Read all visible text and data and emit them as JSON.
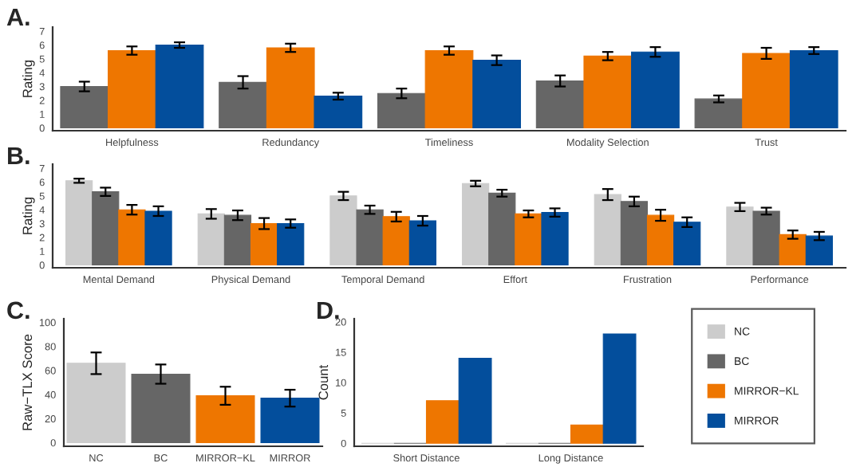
{
  "chart_data": [
    {
      "type": "bar",
      "title": "A.",
      "ylabel": "Rating",
      "categories": [
        "Helpfulness",
        "Redundancy",
        "Timeliness",
        "Modality Selection",
        "Trust"
      ],
      "ylim": [
        -0.2,
        7.3
      ],
      "yticks": [
        0,
        1,
        2,
        3,
        4,
        5,
        6,
        7
      ],
      "series": [
        {
          "color": "#666666",
          "values": [
            3.0,
            3.3,
            2.5,
            3.4,
            2.1
          ],
          "errors": [
            0.35,
            0.45,
            0.35,
            0.4,
            0.25
          ]
        },
        {
          "color": "#ee7600",
          "values": [
            5.6,
            5.8,
            5.6,
            5.2,
            5.4
          ],
          "errors": [
            0.3,
            0.3,
            0.3,
            0.3,
            0.4
          ]
        },
        {
          "color": "#034e9c",
          "values": [
            6.0,
            2.3,
            4.9,
            5.5,
            5.6
          ],
          "errors": [
            0.2,
            0.25,
            0.35,
            0.35,
            0.25
          ]
        }
      ]
    },
    {
      "type": "bar",
      "title": "B.",
      "ylabel": "Rating",
      "categories": [
        "Mental Demand",
        "Physical Demand",
        "Temporal Demand",
        "Effort",
        "Frustration",
        "Performance"
      ],
      "ylim": [
        -0.2,
        7.3
      ],
      "yticks": [
        0,
        1,
        2,
        3,
        4,
        5,
        6,
        7
      ],
      "series": [
        {
          "color": "#cccccc",
          "values": [
            6.1,
            3.7,
            5.0,
            5.9,
            5.1,
            4.2
          ],
          "errors": [
            0.15,
            0.35,
            0.3,
            0.2,
            0.4,
            0.3
          ]
        },
        {
          "color": "#666666",
          "values": [
            5.3,
            3.6,
            4.0,
            5.2,
            4.6,
            3.9
          ],
          "errors": [
            0.3,
            0.35,
            0.3,
            0.25,
            0.35,
            0.25
          ]
        },
        {
          "color": "#ee7600",
          "values": [
            4.0,
            3.0,
            3.5,
            3.7,
            3.6,
            2.2
          ],
          "errors": [
            0.35,
            0.4,
            0.35,
            0.25,
            0.4,
            0.3
          ]
        },
        {
          "color": "#034e9c",
          "values": [
            3.9,
            3.0,
            3.2,
            3.8,
            3.1,
            2.1
          ],
          "errors": [
            0.35,
            0.3,
            0.35,
            0.3,
            0.35,
            0.3
          ]
        }
      ]
    },
    {
      "type": "bar",
      "title": "C.",
      "ylabel": "Raw−TLX Score",
      "categories": [
        "NC",
        "BC",
        "MIRROR−KL",
        "MIRROR"
      ],
      "ylim": [
        -3,
        103
      ],
      "yticks": [
        0,
        20,
        40,
        60,
        80,
        100
      ],
      "series": [
        {
          "colors": [
            "#cccccc",
            "#666666",
            "#ee7600",
            "#034e9c"
          ],
          "values": [
            66,
            57,
            39,
            37
          ],
          "errors": [
            9,
            8,
            7.5,
            7
          ]
        }
      ]
    },
    {
      "type": "bar",
      "title": "D.",
      "ylabel": "Count",
      "categories": [
        "Short Distance",
        "Long Distance"
      ],
      "ylim": [
        -0.5,
        20.5
      ],
      "yticks": [
        0,
        5,
        10,
        15,
        20
      ],
      "legend": "right",
      "series": [
        {
          "name": "NC",
          "color": "#cccccc",
          "values": [
            0,
            0
          ]
        },
        {
          "name": "BC",
          "color": "#666666",
          "values": [
            0,
            0
          ]
        },
        {
          "name": "MIRROR−KL",
          "color": "#ee7600",
          "values": [
            7,
            3
          ]
        },
        {
          "name": "MIRROR",
          "color": "#034e9c",
          "values": [
            14,
            18
          ]
        }
      ]
    }
  ]
}
